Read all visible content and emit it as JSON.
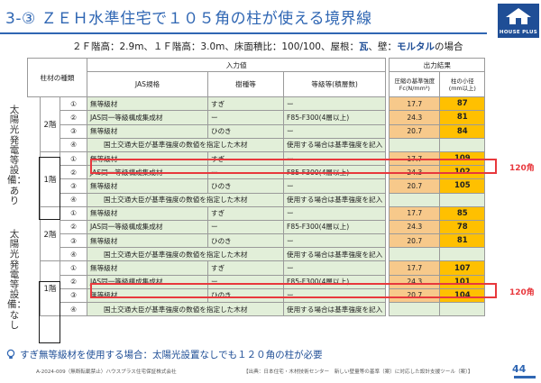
{
  "title": "3-③ ＺＥＨ水準住宅で１０５角の柱が使える境界線",
  "logo": {
    "text": "HOUSE PLUS"
  },
  "subtitle": {
    "pre": "２Ｆ階高：2.9m、１Ｆ階高：3.0m、床面積比：100/100、屋根：",
    "roof": "瓦",
    "mid": "、壁：",
    "wall": "モルタル",
    "post": "の場合"
  },
  "table": {
    "header": {
      "member_type": "柱材の種類",
      "input": "入力値",
      "output": "出力結果",
      "jas": "JAS規格",
      "species": "樹種等",
      "grade": "等級等(積層数)",
      "strength": "圧縮の基準強度",
      "strength_unit": "Fc(N/mm²)",
      "min_col": "柱の小径",
      "min_col_unit": "(mm以上)"
    },
    "groups": [
      {
        "label": "太陽光発電等設備：あり",
        "floors": [
          {
            "floor": "2階",
            "rows": [
              {
                "no": "①",
                "jas": "無等級材",
                "species": "すぎ",
                "grade": "ー",
                "fc": "17.7",
                "min": "87"
              },
              {
                "no": "②",
                "jas": "JAS同一等級構成集成材",
                "species": "ー",
                "grade": "F85-F300(4層以上)",
                "fc": "24.3",
                "min": "81"
              },
              {
                "no": "③",
                "jas": "無等級材",
                "species": "ひのき",
                "grade": "ー",
                "fc": "20.7",
                "min": "84"
              },
              {
                "no": "④",
                "note": "国土交通大臣が基準強度の数値を指定した木材",
                "grade": "使用する場合は基準強度を記入"
              }
            ]
          },
          {
            "floor": "1階",
            "rows": [
              {
                "no": "①",
                "jas": "無等級材",
                "species": "すぎ",
                "grade": "ー",
                "fc": "17.7",
                "min": "109"
              },
              {
                "no": "②",
                "jas": "JAS同一等級構成集成材",
                "species": "ー",
                "grade": "F85-F300(4層以上)",
                "fc": "24.3",
                "min": "102"
              },
              {
                "no": "③",
                "jas": "無等級材",
                "species": "ひのき",
                "grade": "ー",
                "fc": "20.7",
                "min": "105"
              },
              {
                "no": "④",
                "note": "国土交通大臣が基準強度の数値を指定した木材",
                "grade": "使用する場合は基準強度を記入"
              }
            ]
          }
        ]
      },
      {
        "label": "太陽光発電等設備：なし",
        "floors": [
          {
            "floor": "2階",
            "rows": [
              {
                "no": "①",
                "jas": "無等級材",
                "species": "すぎ",
                "grade": "ー",
                "fc": "17.7",
                "min": "85"
              },
              {
                "no": "②",
                "jas": "JAS同一等級構成集成材",
                "species": "ー",
                "grade": "F85-F300(4層以上)",
                "fc": "24.3",
                "min": "78"
              },
              {
                "no": "③",
                "jas": "無等級材",
                "species": "ひのき",
                "grade": "ー",
                "fc": "20.7",
                "min": "81"
              },
              {
                "no": "④",
                "note": "国土交通大臣が基準強度の数値を指定した木材",
                "grade": "使用する場合は基準強度を記入"
              }
            ]
          },
          {
            "floor": "1階",
            "rows": [
              {
                "no": "①",
                "jas": "無等級材",
                "species": "すぎ",
                "grade": "ー",
                "fc": "17.7",
                "min": "107"
              },
              {
                "no": "②",
                "jas": "JAS同一等級構成集成材",
                "species": "ー",
                "grade": "F85-F300(4層以上)",
                "fc": "24.3",
                "min": "101"
              },
              {
                "no": "③",
                "jas": "無等級材",
                "species": "ひのき",
                "grade": "ー",
                "fc": "20.7",
                "min": "104"
              },
              {
                "no": "④",
                "note": "国土交通大臣が基準強度の数値を指定した木材",
                "grade": "使用する場合は基準強度を記入"
              }
            ]
          }
        ]
      }
    ],
    "callouts": [
      "120角",
      "120角"
    ]
  },
  "tip": "すぎ無等級材を使用する場合：太陽光設置なしでも１２０角の柱が必要",
  "footer": {
    "left": "A-2024-009（無断転載禁止）ハウスプラス住宅保証株式会社",
    "right": "【出典：日本住宅・木材技術センター　新しい壁量等の基準（案）に対応した設計支援ツール（案）】",
    "page": "44"
  },
  "colors": {
    "title_blue": "#2f66b3",
    "input_green": "#e2efd9",
    "output_light_orange": "#f7c98b",
    "output_orange": "#ffc000",
    "highlight_red": "#e8383d"
  }
}
